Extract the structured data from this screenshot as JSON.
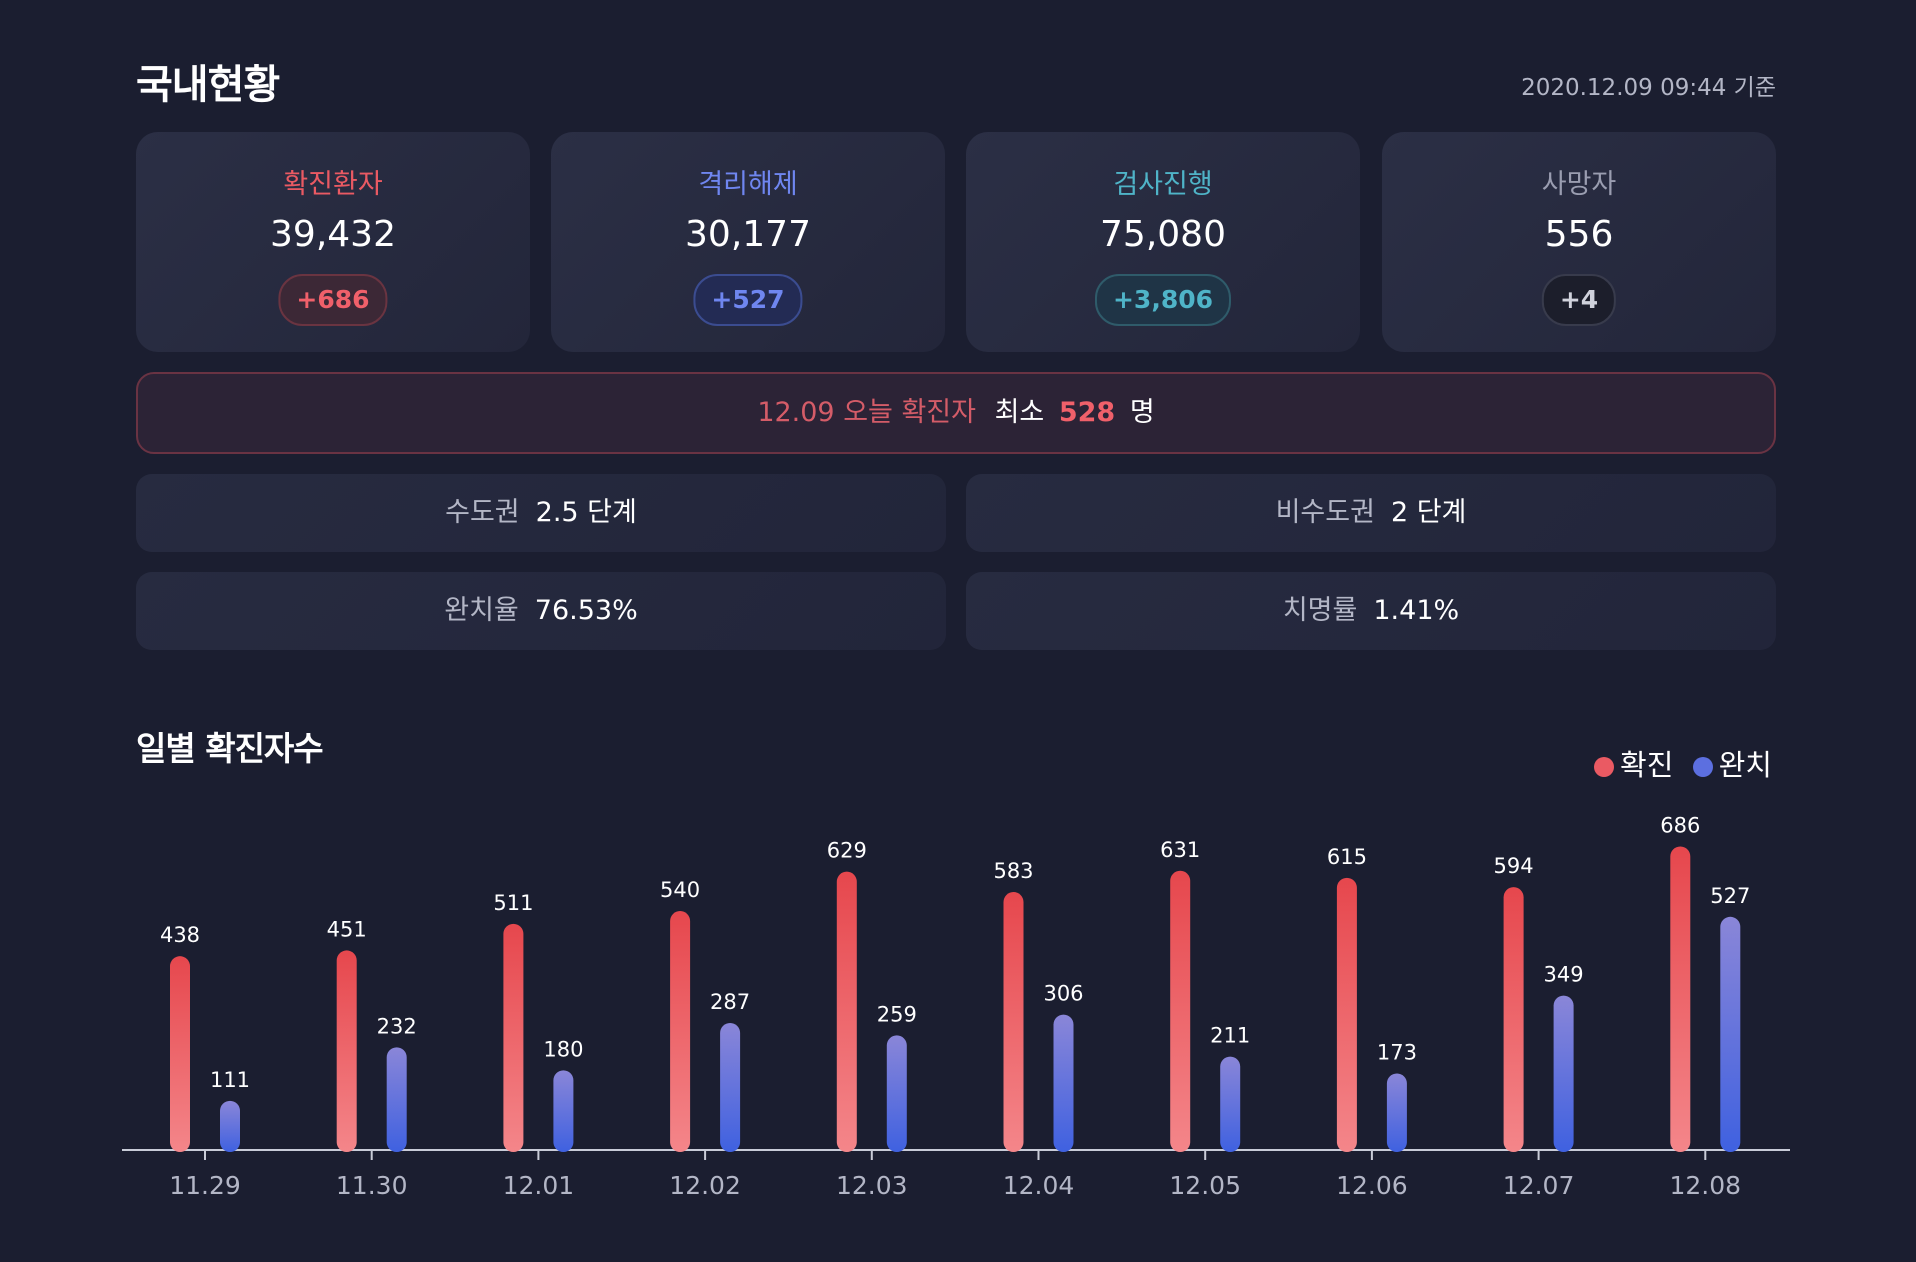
{
  "header": {
    "title": "국내현황",
    "timestamp": "2020.12.09 09:44 기준"
  },
  "cards": [
    {
      "label": "확진환자",
      "value": "39,432",
      "delta": "+686",
      "color": "#ea5a63"
    },
    {
      "label": "격리해제",
      "value": "30,177",
      "delta": "+527",
      "color": "#6f86f0"
    },
    {
      "label": "검사진행",
      "value": "75,080",
      "delta": "+3,806",
      "color": "#4fb4c8"
    },
    {
      "label": "사망자",
      "value": "556",
      "delta": "+4",
      "color": "#9a9db0"
    }
  ],
  "today": {
    "label": "12.09 오늘 확진자",
    "min_label": "최소",
    "count": "528",
    "unit": "명"
  },
  "info": {
    "capital_label": "수도권",
    "capital_value": "2.5 단계",
    "noncapital_label": "비수도권",
    "noncapital_value": "2 단계",
    "recovery_label": "완치율",
    "recovery_value": "76.53%",
    "fatality_label": "치명률",
    "fatality_value": "1.41%"
  },
  "chart_data": {
    "type": "bar",
    "title": "일별 확진자수",
    "categories": [
      "11.29",
      "11.30",
      "12.01",
      "12.02",
      "12.03",
      "12.04",
      "12.05",
      "12.06",
      "12.07",
      "12.08"
    ],
    "series": [
      {
        "name": "확진",
        "values": [
          438,
          451,
          511,
          540,
          629,
          583,
          631,
          615,
          594,
          686
        ],
        "color": "#ea5a63"
      },
      {
        "name": "완치",
        "values": [
          111,
          232,
          180,
          287,
          259,
          306,
          211,
          173,
          349,
          527
        ],
        "color": "#5c6fe0"
      }
    ],
    "legend_position": "top-right",
    "grid": false
  }
}
